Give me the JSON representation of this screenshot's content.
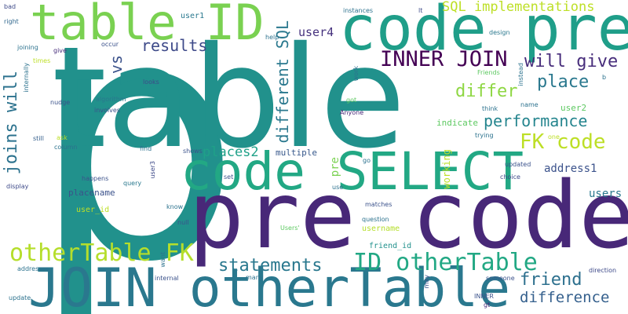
{
  "words": [
    {
      "id": "p-big",
      "text": "p"
    },
    {
      "id": "table-big",
      "text": "table"
    },
    {
      "id": "pre-code-big",
      "text": "pre code"
    },
    {
      "id": "code-pre-top",
      "text": "code pre"
    },
    {
      "id": "join-othertable",
      "text": "JOIN otherTable"
    },
    {
      "id": "table-id",
      "text": "table ID"
    },
    {
      "id": "code-select",
      "text": "code SELECT"
    },
    {
      "id": "othertable-fk",
      "text": "otherTable FK"
    },
    {
      "id": "id-othertable",
      "text": "ID otherTable"
    },
    {
      "id": "inner-join",
      "text": "INNER JOIN"
    },
    {
      "id": "fk-code",
      "text": "FK code"
    },
    {
      "id": "will-give",
      "text": "will give"
    },
    {
      "id": "place",
      "text": "place"
    },
    {
      "id": "differ",
      "text": "differ"
    },
    {
      "id": "performance",
      "text": "performance"
    },
    {
      "id": "friend",
      "text": "friend"
    },
    {
      "id": "difference",
      "text": "difference"
    },
    {
      "id": "statements",
      "text": "statements"
    },
    {
      "id": "results",
      "text": "results"
    },
    {
      "id": "sql-implementations",
      "text": "SQL implementations"
    },
    {
      "id": "joins-will",
      "text": "joins will"
    },
    {
      "id": "different-sql",
      "text": "different SQL"
    },
    {
      "id": "user4",
      "text": "user4"
    },
    {
      "id": "vs",
      "text": "vs"
    },
    {
      "id": "places2",
      "text": "places2"
    },
    {
      "id": "address1",
      "text": "address1"
    },
    {
      "id": "users",
      "text": "users"
    },
    {
      "id": "pre-small",
      "text": "pre"
    },
    {
      "id": "placename",
      "text": "placename"
    },
    {
      "id": "multiple",
      "text": "multiple"
    },
    {
      "id": "working",
      "text": "working"
    },
    {
      "id": "user2",
      "text": "user2"
    },
    {
      "id": "indicate",
      "text": "indicate"
    },
    {
      "id": "user-id",
      "text": "user_id"
    },
    {
      "id": "friend-id",
      "text": "friend_id"
    },
    {
      "id": "username",
      "text": "username"
    },
    {
      "id": "user1",
      "text": "user1"
    },
    {
      "id": "instances",
      "text": "instances"
    },
    {
      "id": "lt",
      "text": "lt"
    },
    {
      "id": "design",
      "text": "design"
    },
    {
      "id": "right",
      "text": "right"
    },
    {
      "id": "bad",
      "text": "bad"
    },
    {
      "id": "help",
      "text": "help"
    },
    {
      "id": "joining",
      "text": "joining"
    },
    {
      "id": "give",
      "text": "give"
    },
    {
      "id": "occur",
      "text": "occur"
    },
    {
      "id": "times",
      "text": "times"
    },
    {
      "id": "looks",
      "text": "looks"
    },
    {
      "id": "work",
      "text": "work"
    },
    {
      "id": "internally",
      "text": "internally"
    },
    {
      "id": "friends",
      "text": "Friends"
    },
    {
      "id": "instead",
      "text": "instead"
    },
    {
      "id": "b",
      "text": "b"
    },
    {
      "id": "nudge",
      "text": "nudge"
    },
    {
      "id": "algorithm",
      "text": "algorithm"
    },
    {
      "id": "involves",
      "text": "involves"
    },
    {
      "id": "got",
      "text": "got"
    },
    {
      "id": "anyone",
      "text": "Anyone"
    },
    {
      "id": "name",
      "text": "name"
    },
    {
      "id": "think",
      "text": "think"
    },
    {
      "id": "still",
      "text": "still"
    },
    {
      "id": "ask",
      "text": "ask"
    },
    {
      "id": "column",
      "text": "column"
    },
    {
      "id": "find",
      "text": "find"
    },
    {
      "id": "shows",
      "text": "shows"
    },
    {
      "id": "trying",
      "text": "trying"
    },
    {
      "id": "one",
      "text": "one"
    },
    {
      "id": "go",
      "text": "go"
    },
    {
      "id": "updated",
      "text": "updated"
    },
    {
      "id": "happens",
      "text": "happens"
    },
    {
      "id": "query",
      "text": "query"
    },
    {
      "id": "user3",
      "text": "user3"
    },
    {
      "id": "set",
      "text": "set"
    },
    {
      "id": "choice",
      "text": "choice"
    },
    {
      "id": "display",
      "text": "display"
    },
    {
      "id": "use",
      "text": "use"
    },
    {
      "id": "know",
      "text": "know"
    },
    {
      "id": "matches",
      "text": "matches"
    },
    {
      "id": "question",
      "text": "question"
    },
    {
      "id": "null",
      "text": "null"
    },
    {
      "id": "users-apos",
      "text": "Users'"
    },
    {
      "id": "want",
      "text": "want"
    },
    {
      "id": "addresses",
      "text": "addresses"
    },
    {
      "id": "internal",
      "text": "internal"
    },
    {
      "id": "many",
      "text": "many"
    },
    {
      "id": "someone",
      "text": "someone"
    },
    {
      "id": "direction",
      "text": "direction"
    },
    {
      "id": "update",
      "text": "update"
    },
    {
      "id": "inner-small",
      "text": "INNER"
    },
    {
      "id": "gt",
      "text": "gt"
    },
    {
      "id": "may",
      "text": "may"
    }
  ]
}
